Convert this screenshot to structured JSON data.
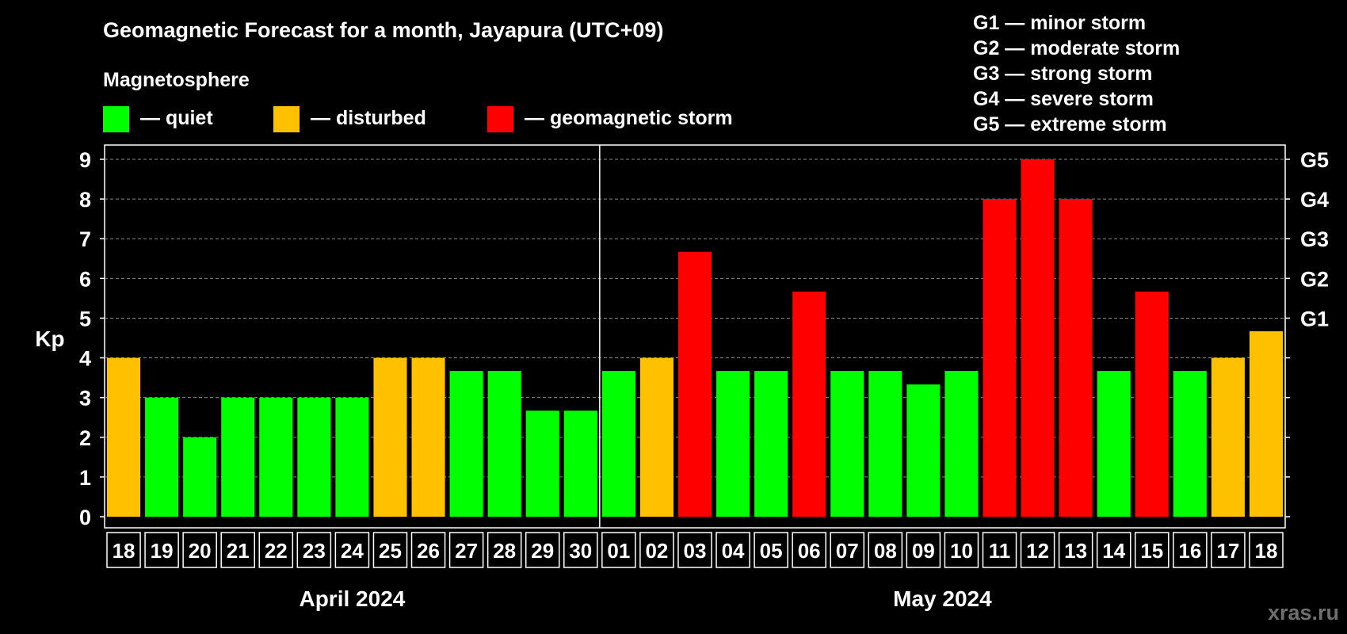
{
  "chart_data": {
    "type": "bar",
    "title": "Geomagnetic Forecast for a month, Jayapura (UTC+09)",
    "ylabel": "Kp",
    "ylim": [
      0,
      9
    ],
    "yticks": [
      "0",
      "1",
      "2",
      "3",
      "4",
      "5",
      "6",
      "7",
      "8",
      "9"
    ],
    "right_ticks": [
      {
        "value": 5,
        "label": "G1"
      },
      {
        "value": 6,
        "label": "G2"
      },
      {
        "value": 7,
        "label": "G3"
      },
      {
        "value": 8,
        "label": "G4"
      },
      {
        "value": 9,
        "label": "G5"
      }
    ],
    "categories": [
      "18",
      "19",
      "20",
      "21",
      "22",
      "23",
      "24",
      "25",
      "26",
      "27",
      "28",
      "29",
      "30",
      "01",
      "02",
      "03",
      "04",
      "05",
      "06",
      "07",
      "08",
      "09",
      "10",
      "11",
      "12",
      "13",
      "14",
      "15",
      "16",
      "17",
      "18"
    ],
    "values": [
      4,
      3,
      2,
      3,
      3,
      3,
      3,
      4,
      4,
      3.67,
      3.67,
      2.67,
      2.67,
      3.67,
      4,
      6.67,
      3.67,
      3.67,
      5.67,
      3.67,
      3.67,
      3.33,
      3.67,
      8,
      9,
      8,
      3.67,
      5.67,
      3.67,
      4,
      4.67
    ],
    "levels": [
      "disturbed",
      "quiet",
      "quiet",
      "quiet",
      "quiet",
      "quiet",
      "quiet",
      "disturbed",
      "disturbed",
      "quiet",
      "quiet",
      "quiet",
      "quiet",
      "quiet",
      "disturbed",
      "storm",
      "quiet",
      "quiet",
      "storm",
      "quiet",
      "quiet",
      "quiet",
      "quiet",
      "storm",
      "storm",
      "storm",
      "quiet",
      "storm",
      "quiet",
      "disturbed",
      "disturbed"
    ],
    "months": [
      {
        "label": "April 2024",
        "start_index": 0,
        "count": 13
      },
      {
        "label": "May 2024",
        "start_index": 13,
        "count": 18
      }
    ],
    "grid": true,
    "legend": {
      "heading": "Magnetosphere",
      "items": [
        {
          "key": "quiet",
          "label": "— quiet",
          "color": "#00ff00"
        },
        {
          "key": "disturbed",
          "label": "— disturbed",
          "color": "#ffc000"
        },
        {
          "key": "storm",
          "label": "— geomagnetic storm",
          "color": "#ff0000"
        }
      ]
    },
    "storm_scale": [
      "G1 — minor storm",
      "G2 — moderate storm",
      "G3 — strong storm",
      "G4 — severe storm",
      "G5 — extreme storm"
    ],
    "watermark": "xras.ru"
  }
}
